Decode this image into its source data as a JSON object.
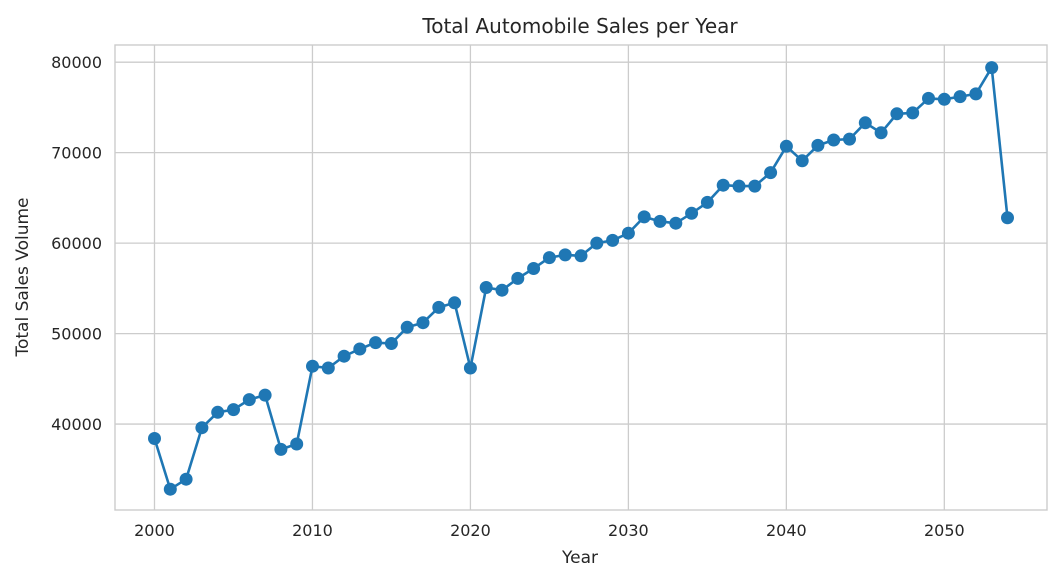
{
  "chart_data": {
    "type": "line",
    "title": "Total Automobile Sales per Year",
    "xlabel": "Year",
    "ylabel": "Total Sales Volume",
    "xlim": [
      1997.5,
      2056.5
    ],
    "ylim": [
      30500,
      81900
    ],
    "x_ticks": [
      2000,
      2010,
      2020,
      2030,
      2040,
      2050
    ],
    "y_ticks": [
      40000,
      50000,
      60000,
      70000,
      80000
    ],
    "grid": true,
    "markers": true,
    "color": "#1f77b4",
    "x": [
      2000,
      2001,
      2002,
      2003,
      2004,
      2005,
      2006,
      2007,
      2008,
      2009,
      2010,
      2011,
      2012,
      2013,
      2014,
      2015,
      2016,
      2017,
      2018,
      2019,
      2020,
      2021,
      2022,
      2023,
      2024,
      2025,
      2026,
      2027,
      2028,
      2029,
      2030,
      2031,
      2032,
      2033,
      2034,
      2035,
      2036,
      2037,
      2038,
      2039,
      2040,
      2041,
      2042,
      2043,
      2044,
      2045,
      2046,
      2047,
      2048,
      2049,
      2050,
      2051,
      2052,
      2053,
      2054
    ],
    "series": [
      {
        "values": [
          38400,
          32800,
          33900,
          39600,
          41300,
          41600,
          42700,
          43200,
          37200,
          37800,
          46400,
          46200,
          47500,
          48300,
          49000,
          48900,
          50700,
          51200,
          52900,
          53400,
          46200,
          55100,
          54800,
          56100,
          57200,
          58400,
          58700,
          58600,
          60000,
          60300,
          61100,
          62900,
          62400,
          62200,
          63300,
          64500,
          66400,
          66300,
          66300,
          67800,
          70700,
          69100,
          70800,
          71400,
          71500,
          73300,
          72200,
          74300,
          74400,
          76000,
          75900,
          76200,
          76500,
          79400,
          62800
        ]
      }
    ]
  }
}
